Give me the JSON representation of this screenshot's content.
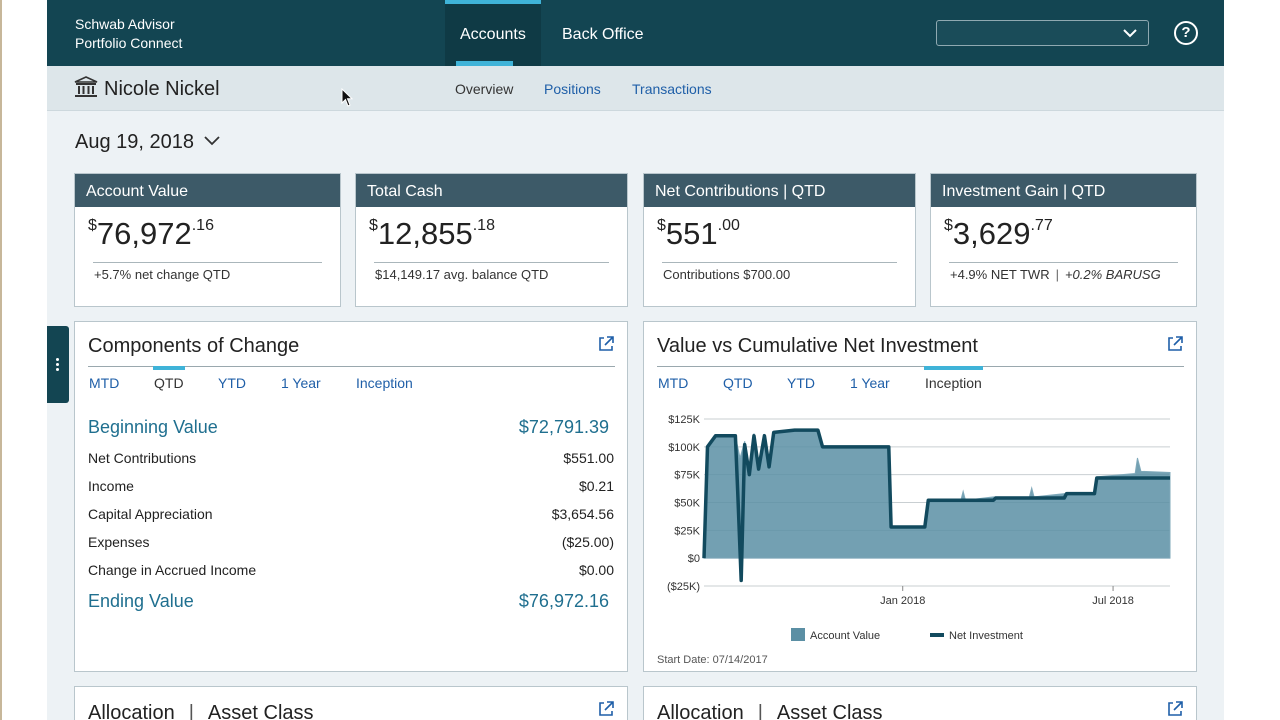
{
  "header": {
    "brand_line1": "Schwab Advisor",
    "brand_line2": "Portfolio Connect",
    "tabs": [
      {
        "label": "Accounts",
        "active": true
      },
      {
        "label": "Back Office",
        "active": false
      }
    ],
    "select_value": "",
    "help_label": "?"
  },
  "subheader": {
    "client_name": "Nicole Nickel",
    "tabs": [
      {
        "label": "Overview",
        "active": true
      },
      {
        "label": "Positions",
        "active": false
      },
      {
        "label": "Transactions",
        "active": false
      }
    ]
  },
  "date": "Aug 19, 2018",
  "kpis": [
    {
      "title": "Account Value",
      "currency": "$",
      "whole": "76,972",
      "cents": ".16",
      "footer": "+5.7% net change QTD"
    },
    {
      "title": "Total Cash",
      "currency": "$",
      "whole": "12,855",
      "cents": ".18",
      "footer": "$14,149.17 avg. balance QTD"
    },
    {
      "title": "Net Contributions | QTD",
      "currency": "$",
      "whole": "551",
      "cents": ".00",
      "footer": "Contributions $700.00"
    },
    {
      "title": "Investment Gain | QTD",
      "currency": "$",
      "whole": "3,629",
      "cents": ".77",
      "footer": "+4.9% NET TWR",
      "footer_sep": "|",
      "footer_extra": "+0.2% BARUSG"
    }
  ],
  "components": {
    "title": "Components of Change",
    "tabs": [
      {
        "label": "MTD",
        "active": false
      },
      {
        "label": "QTD",
        "active": true
      },
      {
        "label": "YTD",
        "active": false
      },
      {
        "label": "1 Year",
        "active": false
      },
      {
        "label": "Inception",
        "active": false
      }
    ],
    "beginning": {
      "label": "Beginning Value",
      "value": "$72,791.39"
    },
    "rows": [
      {
        "label": "Net Contributions",
        "value": "$551.00"
      },
      {
        "label": "Income",
        "value": "$0.21"
      },
      {
        "label": "Capital Appreciation",
        "value": "$3,654.56"
      },
      {
        "label": "Expenses",
        "value": "($25.00)"
      },
      {
        "label": "Change in Accrued Income",
        "value": "$0.00"
      }
    ],
    "ending": {
      "label": "Ending Value",
      "value": "$76,972.16"
    }
  },
  "value_chart": {
    "title": "Value vs Cumulative Net Investment",
    "tabs": [
      {
        "label": "MTD",
        "active": false
      },
      {
        "label": "QTD",
        "active": false
      },
      {
        "label": "YTD",
        "active": false
      },
      {
        "label": "1 Year",
        "active": false
      },
      {
        "label": "Inception",
        "active": true
      }
    ],
    "start_date": "Start Date: 07/14/2017"
  },
  "chart_data": {
    "type": "area",
    "x_tick_labels": [
      "Jan 2018",
      "Jul 2018"
    ],
    "y_tick_labels": [
      "$125K",
      "$100K",
      "$75K",
      "$50K",
      "$25K",
      "$0",
      "($25K)"
    ],
    "ylim": [
      -25000,
      125000
    ],
    "x_range": [
      "2017-07-14",
      "2018-08-19"
    ],
    "grid": true,
    "legend_position": "bottom",
    "series": [
      {
        "name": "Account Value",
        "kind": "area",
        "color": "#5b8fa4",
        "points": [
          [
            "2017-07-14",
            0
          ],
          [
            "2017-07-17",
            100000
          ],
          [
            "2017-07-24",
            110000
          ],
          [
            "2017-08-10",
            110000
          ],
          [
            "2017-08-14",
            90000
          ],
          [
            "2017-08-18",
            105000
          ],
          [
            "2017-08-22",
            80000
          ],
          [
            "2017-08-26",
            112000
          ],
          [
            "2017-08-30",
            85000
          ],
          [
            "2017-09-04",
            110000
          ],
          [
            "2017-09-08",
            85000
          ],
          [
            "2017-09-12",
            113000
          ],
          [
            "2017-09-30",
            115000
          ],
          [
            "2017-10-20",
            115000
          ],
          [
            "2017-10-24",
            100000
          ],
          [
            "2017-12-20",
            100000
          ],
          [
            "2017-12-22",
            28000
          ],
          [
            "2018-01-20",
            28000
          ],
          [
            "2018-01-23",
            52000
          ],
          [
            "2018-02-20",
            52000
          ],
          [
            "2018-02-22",
            60000
          ],
          [
            "2018-02-24",
            52000
          ],
          [
            "2018-03-20",
            55000
          ],
          [
            "2018-04-20",
            55000
          ],
          [
            "2018-04-22",
            63000
          ],
          [
            "2018-04-24",
            55000
          ],
          [
            "2018-05-20",
            58000
          ],
          [
            "2018-06-15",
            58000
          ],
          [
            "2018-06-17",
            73000
          ],
          [
            "2018-07-20",
            76000
          ],
          [
            "2018-07-22",
            90000
          ],
          [
            "2018-07-25",
            78000
          ],
          [
            "2018-08-19",
            77000
          ]
        ]
      },
      {
        "name": "Net Investment",
        "kind": "line",
        "color": "#124a5e",
        "points": [
          [
            "2017-07-14",
            0
          ],
          [
            "2017-07-17",
            100000
          ],
          [
            "2017-07-24",
            110000
          ],
          [
            "2017-08-10",
            110000
          ],
          [
            "2017-08-12",
            60000
          ],
          [
            "2017-08-15",
            -20000
          ],
          [
            "2017-08-18",
            102000
          ],
          [
            "2017-08-22",
            75000
          ],
          [
            "2017-08-26",
            110000
          ],
          [
            "2017-08-30",
            80000
          ],
          [
            "2017-09-04",
            110000
          ],
          [
            "2017-09-08",
            82000
          ],
          [
            "2017-09-12",
            113000
          ],
          [
            "2017-09-30",
            115000
          ],
          [
            "2017-10-20",
            115000
          ],
          [
            "2017-10-24",
            100000
          ],
          [
            "2017-12-20",
            100000
          ],
          [
            "2017-12-22",
            28000
          ],
          [
            "2018-01-20",
            28000
          ],
          [
            "2018-01-23",
            52000
          ],
          [
            "2018-03-20",
            52000
          ],
          [
            "2018-03-22",
            54000
          ],
          [
            "2018-05-20",
            54000
          ],
          [
            "2018-05-22",
            58000
          ],
          [
            "2018-06-15",
            58000
          ],
          [
            "2018-06-17",
            72000
          ],
          [
            "2018-08-19",
            72000
          ]
        ]
      }
    ]
  },
  "allocation_left": {
    "title": "Allocation",
    "sep": "|",
    "subtitle": "Asset Class"
  },
  "allocation_right": {
    "title": "Allocation",
    "sep": "|",
    "subtitle": "Asset Class"
  },
  "colors": {
    "header": "#134552",
    "accent": "#3fb3d8",
    "link": "#1f5fa8",
    "card_head": "#3d5a68"
  }
}
